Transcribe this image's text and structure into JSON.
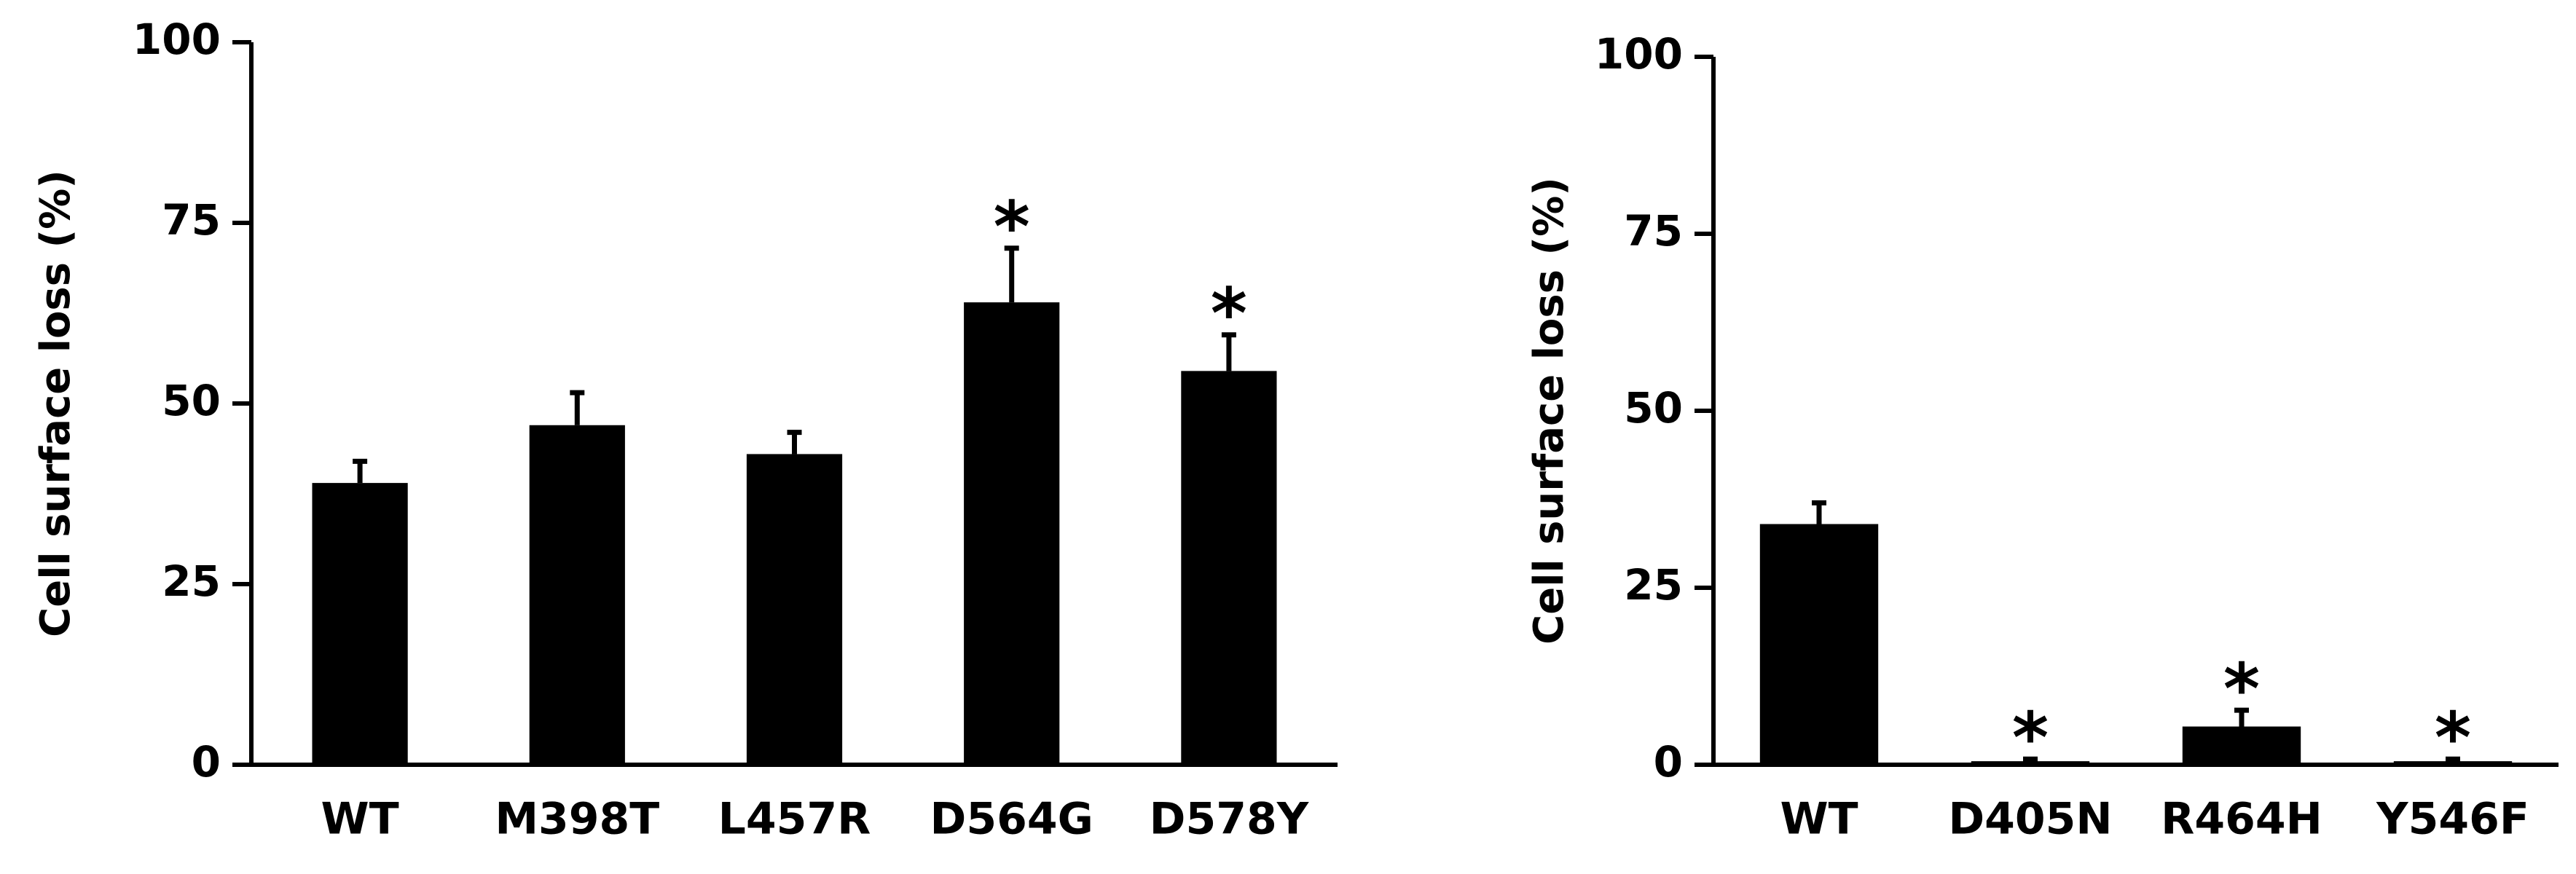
{
  "chart_data": [
    {
      "type": "bar",
      "y_label": "Cell surface loss (%)",
      "categories": [
        "WT",
        "M398T",
        "L457R",
        "D564G",
        "D578Y"
      ],
      "values": [
        39,
        47,
        43,
        64,
        54.5
      ],
      "errors": [
        3,
        4.5,
        3,
        7.5,
        5
      ],
      "markers": [
        null,
        null,
        null,
        "*",
        "*"
      ],
      "color": "#000000",
      "ylim": [
        0,
        100
      ],
      "yticks": [
        0,
        25,
        50,
        75,
        100
      ]
    },
    {
      "type": "bar",
      "y_label": "Cell surface loss (%)",
      "categories": [
        "WT",
        "D405N",
        "R464H",
        "Y546F"
      ],
      "values": [
        34,
        0.5,
        5.4,
        0.5
      ],
      "errors": [
        3,
        0.3,
        2.3,
        0.3
      ],
      "markers": [
        null,
        "*",
        "*",
        "*"
      ],
      "color": "#000000",
      "ylim": [
        0,
        100
      ],
      "yticks": [
        0,
        25,
        50,
        75,
        100
      ]
    }
  ]
}
